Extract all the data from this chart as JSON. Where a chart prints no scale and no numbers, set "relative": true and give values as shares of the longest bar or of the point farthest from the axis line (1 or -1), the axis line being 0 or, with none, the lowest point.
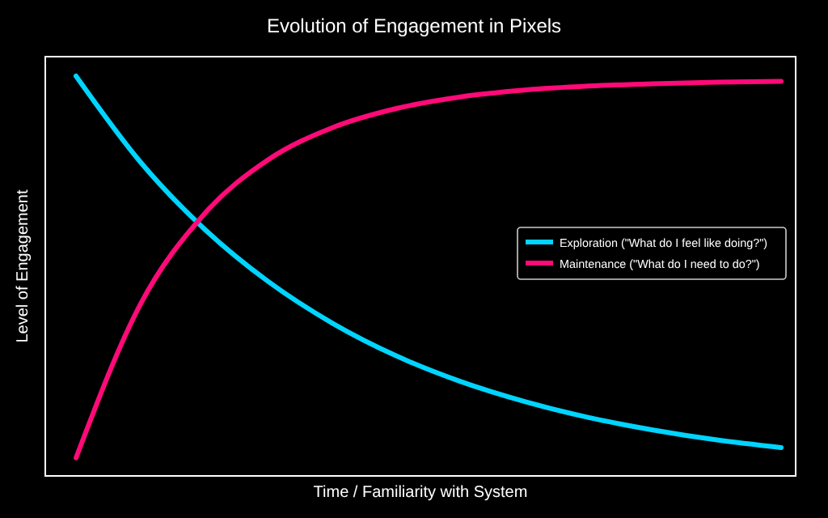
{
  "chart_data": {
    "type": "line",
    "title": "Evolution of Engagement in Pixels",
    "xlabel": "Time / Familiarity with System",
    "ylabel": "Level of Engagement",
    "relative": true,
    "categories": [
      null,
      null,
      null,
      null,
      null,
      null,
      null,
      null,
      null,
      null,
      null,
      null
    ],
    "series": [
      {
        "name": "Exploration (\"What do I feel like doing?\")",
        "color": "#00d4ff",
        "values": [
          1,
          0.786,
          0.618,
          0.486,
          0.382,
          0.3,
          0.236,
          0.186,
          0.146,
          0.115,
          0.09,
          0.071
        ]
      },
      {
        "name": "Maintenance (\"What do I need to do?\")",
        "color": "#ff0a78",
        "values": [
          0.045,
          0.428,
          0.655,
          0.791,
          0.871,
          0.919,
          0.948,
          0.965,
          0.975,
          0.981,
          0.985,
          0.987
        ]
      }
    ],
    "legend": "right",
    "marker": "none",
    "line_style": "solid"
  }
}
